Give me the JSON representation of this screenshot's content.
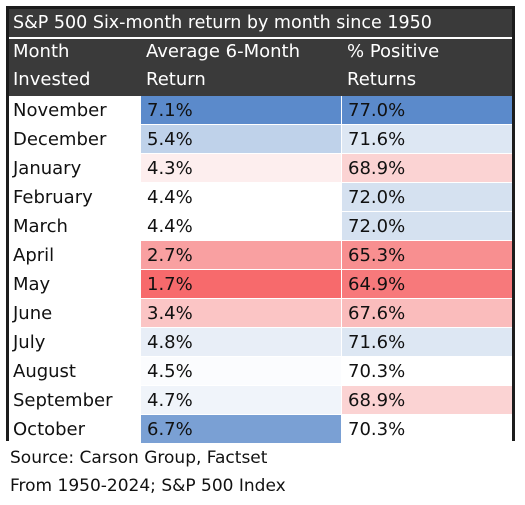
{
  "chart_data": {
    "type": "table",
    "title": "S&P 500 Six-month return by month since 1950",
    "columns": [
      [
        "Month",
        "Invested"
      ],
      [
        "Average 6-Month",
        "Return"
      ],
      [
        "% Positive",
        "Returns"
      ]
    ],
    "rows": [
      {
        "month": "November",
        "avg_return": "7.1%",
        "pct_positive": "77.0%",
        "avg_color": "#5b8acb",
        "pct_color": "#5b8acb"
      },
      {
        "month": "December",
        "avg_return": "5.4%",
        "pct_positive": "71.6%",
        "avg_color": "#bfd2ea",
        "pct_color": "#dde7f3"
      },
      {
        "month": "January",
        "avg_return": "4.3%",
        "pct_positive": "68.9%",
        "avg_color": "#fdeeee",
        "pct_color": "#fbd3d3"
      },
      {
        "month": "February",
        "avg_return": "4.4%",
        "pct_positive": "72.0%",
        "avg_color": "#ffffff",
        "pct_color": "#d5e1f0"
      },
      {
        "month": "March",
        "avg_return": "4.4%",
        "pct_positive": "72.0%",
        "avg_color": "#ffffff",
        "pct_color": "#d5e1f0"
      },
      {
        "month": "April",
        "avg_return": "2.7%",
        "pct_positive": "65.3%",
        "avg_color": "#f9a0a1",
        "pct_color": "#f88f90"
      },
      {
        "month": "May",
        "avg_return": "1.7%",
        "pct_positive": "64.9%",
        "avg_color": "#f76a6c",
        "pct_color": "#f7797b"
      },
      {
        "month": "June",
        "avg_return": "3.4%",
        "pct_positive": "67.6%",
        "avg_color": "#fbc5c5",
        "pct_color": "#fabcbc"
      },
      {
        "month": "July",
        "avg_return": "4.8%",
        "pct_positive": "71.6%",
        "avg_color": "#e8eef7",
        "pct_color": "#dde7f3"
      },
      {
        "month": "August",
        "avg_return": "4.5%",
        "pct_positive": "70.3%",
        "avg_color": "#fbfcfe",
        "pct_color": "#ffffff"
      },
      {
        "month": "September",
        "avg_return": "4.7%",
        "pct_positive": "68.9%",
        "avg_color": "#f0f4fa",
        "pct_color": "#fbd3d3"
      },
      {
        "month": "October",
        "avg_return": "6.7%",
        "pct_positive": "70.3%",
        "avg_color": "#7aa0d4",
        "pct_color": "#ffffff"
      }
    ],
    "sources": [
      "Source: Carson Group, Factset",
      "From 1950-2024; S&P 500 Index"
    ]
  },
  "colors": {
    "header_bg": "#3a3a3a",
    "header_text": "#ffffff",
    "border": "#1c1c1c"
  }
}
